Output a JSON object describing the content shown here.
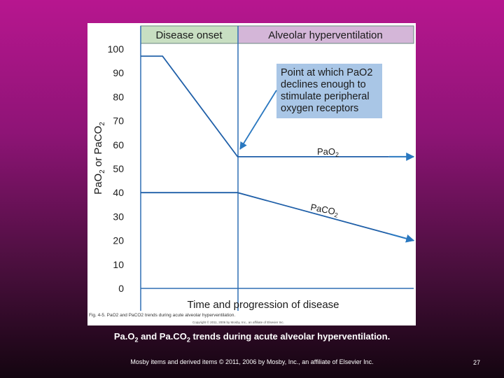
{
  "colors": {
    "header_green": "#c8dfc2",
    "header_purple": "#d4b6d8",
    "callout_blue": "#a9c6e6",
    "line": "#1f5fa8",
    "arrow": "#2a78c0"
  },
  "chart_data": {
    "type": "line",
    "phases": [
      "Disease onset",
      "Alveolar hyperventilation"
    ],
    "ylabel_parts": [
      "PaO",
      "2",
      " or PaCO",
      "2"
    ],
    "xlabel": "Time and progression of disease",
    "ylim": [
      0,
      100
    ],
    "yticks": [
      0,
      10,
      20,
      30,
      40,
      50,
      60,
      70,
      80,
      90,
      100
    ],
    "series": [
      {
        "name": "PaO2",
        "label_main": "PaO",
        "label_sub": "2",
        "x": [
          0,
          0.08,
          0.355,
          1.0
        ],
        "y": [
          97,
          97,
          55,
          55
        ]
      },
      {
        "name": "PaCO2",
        "label_main": "PaCO",
        "label_sub": "2",
        "x": [
          0,
          0.355,
          1.0
        ],
        "y": [
          40,
          40,
          20
        ]
      }
    ],
    "annotation": {
      "lines": [
        "Point at which PaO2",
        "declines enough to",
        "stimulate peripheral",
        "oxygen receptors"
      ]
    },
    "fig_caption": "Fig. 4-5. PaO2 and PaCO2 trends during acute alveolar hyperventilation.",
    "fig_copyright": "Copyright © 2011, 2006 by Mosby, Inc., an affiliate of Elsevier Inc."
  },
  "slide": {
    "caption_a": "Pa.O",
    "caption_sub1": "2",
    "caption_b": " and Pa.CO",
    "caption_sub2": "2",
    "caption_c": " trends during acute alveolar hyperventilation.",
    "copyright": "Mosby items and derived items © 2011, 2006 by Mosby, Inc., an affiliate of Elsevier Inc.",
    "page_number": "27"
  }
}
